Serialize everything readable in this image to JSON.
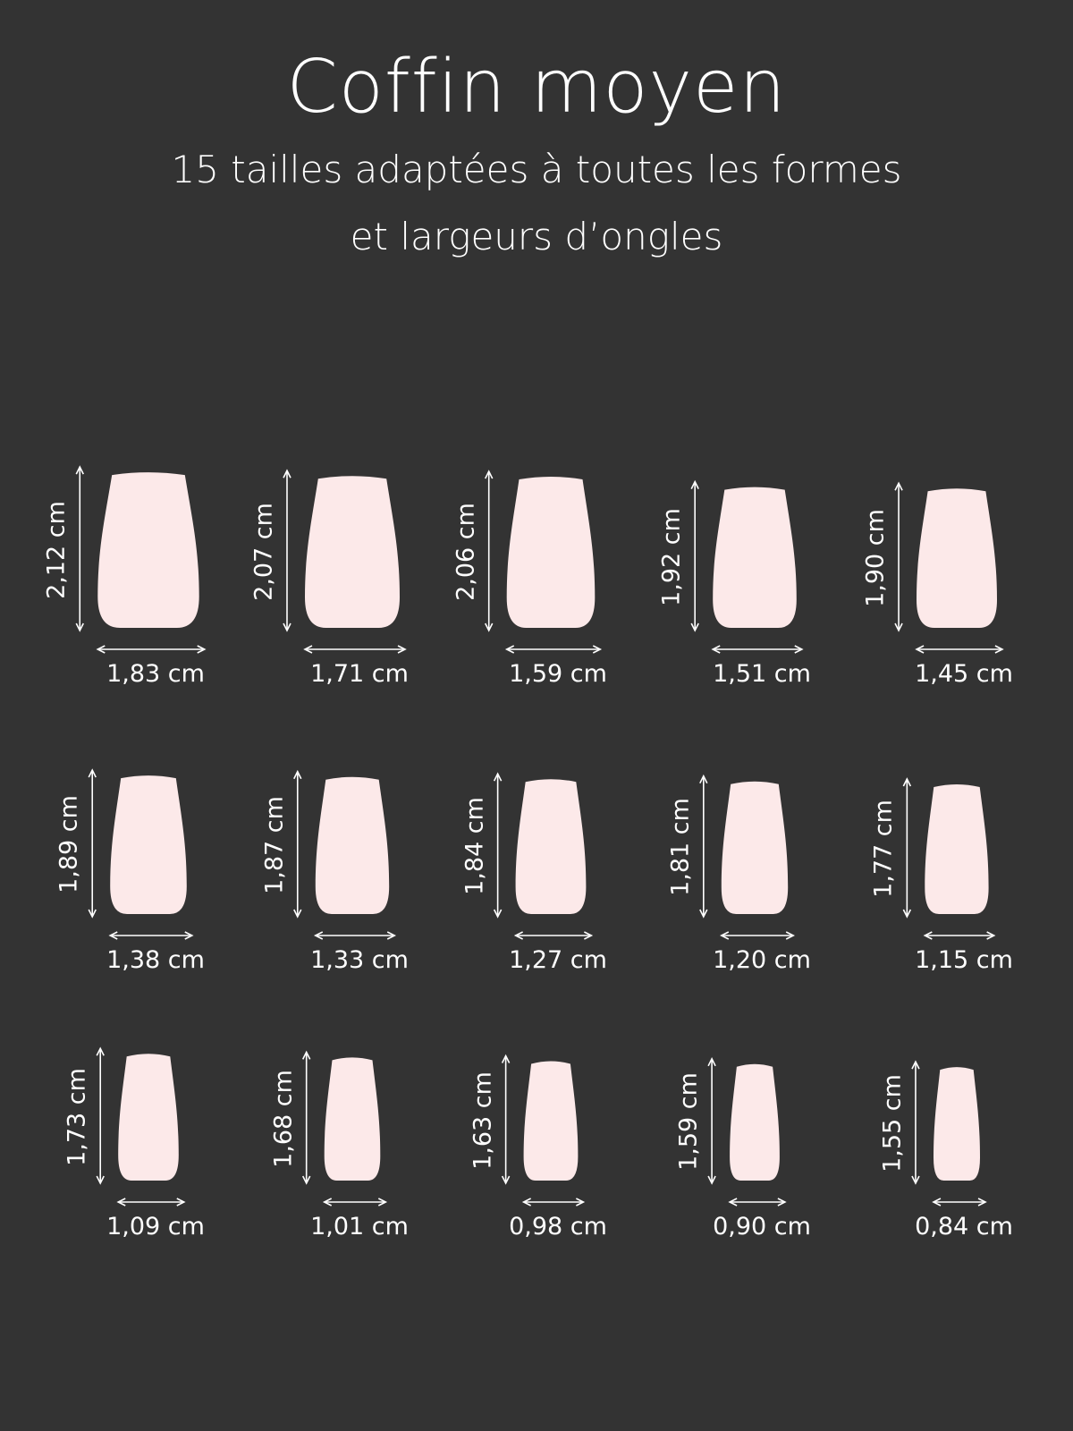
{
  "title": "Coffin moyen",
  "subtitle_line1": "15 tailles adaptées à toutes les formes",
  "subtitle_line2": "et largeurs d’ongles",
  "colors": {
    "background": "#333333",
    "nail": "#fce9e9",
    "text": "#ffffff"
  },
  "unit": "cm",
  "sizes": [
    {
      "length": "2,12 cm",
      "width": "1,83 cm",
      "l": 2.12,
      "w": 1.83
    },
    {
      "length": "2,07 cm",
      "width": "1,71 cm",
      "l": 2.07,
      "w": 1.71
    },
    {
      "length": "2,06 cm",
      "width": "1,59 cm",
      "l": 2.06,
      "w": 1.59
    },
    {
      "length": "1,92 cm",
      "width": "1,51 cm",
      "l": 1.92,
      "w": 1.51
    },
    {
      "length": "1,90 cm",
      "width": "1,45 cm",
      "l": 1.9,
      "w": 1.45
    },
    {
      "length": "1,89 cm",
      "width": "1,38 cm",
      "l": 1.89,
      "w": 1.38
    },
    {
      "length": "1,87 cm",
      "width": "1,33 cm",
      "l": 1.87,
      "w": 1.33
    },
    {
      "length": "1,84 cm",
      "width": "1,27 cm",
      "l": 1.84,
      "w": 1.27
    },
    {
      "length": "1,81 cm",
      "width": "1,20 cm",
      "l": 1.81,
      "w": 1.2
    },
    {
      "length": "1,77 cm",
      "width": "1,15 cm",
      "l": 1.77,
      "w": 1.15
    },
    {
      "length": "1,73 cm",
      "width": "1,09 cm",
      "l": 1.73,
      "w": 1.09
    },
    {
      "length": "1,68 cm",
      "width": "1,01 cm",
      "l": 1.68,
      "w": 1.01
    },
    {
      "length": "1,63 cm",
      "width": "0,98 cm",
      "l": 1.63,
      "w": 0.98
    },
    {
      "length": "1,59 cm",
      "width": "0,90 cm",
      "l": 1.59,
      "w": 0.9
    },
    {
      "length": "1,55 cm",
      "width": "0,84 cm",
      "l": 1.55,
      "w": 0.84
    }
  ]
}
